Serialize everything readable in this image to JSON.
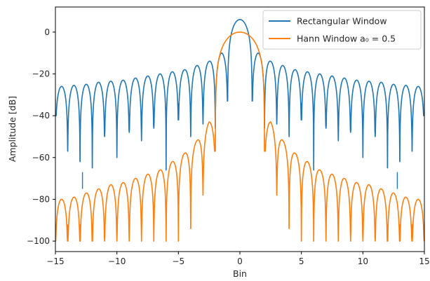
{
  "chart_data": {
    "type": "line",
    "xlabel": "Bin",
    "ylabel": "Amplitude [dB]",
    "xlim": [
      -15,
      15
    ],
    "ylim": [
      -105,
      12
    ],
    "xticks": [
      -15,
      -10,
      -5,
      0,
      5,
      10,
      15
    ],
    "xtick_labels": [
      "−15",
      "−10",
      "−5",
      "0",
      "5",
      "10",
      "15"
    ],
    "yticks": [
      -100,
      -80,
      -60,
      -40,
      -20,
      0
    ],
    "ytick_labels": [
      "−100",
      "−80",
      "−60",
      "−40",
      "−20",
      "0"
    ],
    "grid": false,
    "legend_position": "top-right",
    "series": [
      {
        "name": "Rectangular Window",
        "color": "#1f77b4",
        "main_lobe_peak_db": 6.0,
        "sidelobe_peaks_db": [
          {
            "x": -14.5,
            "y": -26
          },
          {
            "x": -13.5,
            "y": -25.5
          },
          {
            "x": -12.5,
            "y": -25
          },
          {
            "x": -11.5,
            "y": -24
          },
          {
            "x": -10.5,
            "y": -23.5
          },
          {
            "x": -9.5,
            "y": -23
          },
          {
            "x": -8.5,
            "y": -22
          },
          {
            "x": -7.5,
            "y": -21
          },
          {
            "x": -6.5,
            "y": -20
          },
          {
            "x": -5.5,
            "y": -19
          },
          {
            "x": -4.5,
            "y": -18
          },
          {
            "x": -3.5,
            "y": -16
          },
          {
            "x": -2.5,
            "y": -14
          },
          {
            "x": -1.5,
            "y": -10
          },
          {
            "x": 1.5,
            "y": -10
          },
          {
            "x": 2.5,
            "y": -14
          },
          {
            "x": 3.5,
            "y": -16
          },
          {
            "x": 4.5,
            "y": -18
          },
          {
            "x": 5.5,
            "y": -19
          },
          {
            "x": 6.5,
            "y": -20
          },
          {
            "x": 7.5,
            "y": -21
          },
          {
            "x": 8.5,
            "y": -22
          },
          {
            "x": 9.5,
            "y": -23
          },
          {
            "x": 10.5,
            "y": -23.5
          },
          {
            "x": 11.5,
            "y": -24
          },
          {
            "x": 12.5,
            "y": -25
          },
          {
            "x": 13.5,
            "y": -25.5
          },
          {
            "x": 14.5,
            "y": -26
          }
        ],
        "nulls_db": [
          {
            "x": -15,
            "y": -40
          },
          {
            "x": -14,
            "y": -57
          },
          {
            "x": -13,
            "y": -62
          },
          {
            "x": -12.8,
            "y": -75
          },
          {
            "x": -12,
            "y": -65
          },
          {
            "x": -11,
            "y": -50
          },
          {
            "x": -10,
            "y": -60
          },
          {
            "x": -9,
            "y": -48
          },
          {
            "x": -8,
            "y": -52
          },
          {
            "x": -7,
            "y": -46
          },
          {
            "x": -6,
            "y": -66
          },
          {
            "x": -5,
            "y": -42
          },
          {
            "x": -4,
            "y": -50
          },
          {
            "x": -3,
            "y": -44
          },
          {
            "x": -2,
            "y": -46
          },
          {
            "x": -1,
            "y": -33
          },
          {
            "x": 1,
            "y": -33
          },
          {
            "x": 2,
            "y": -46
          },
          {
            "x": 3,
            "y": -44
          },
          {
            "x": 4,
            "y": -50
          },
          {
            "x": 5,
            "y": -42
          },
          {
            "x": 6,
            "y": -66
          },
          {
            "x": 7,
            "y": -46
          },
          {
            "x": 8,
            "y": -52
          },
          {
            "x": 9,
            "y": -48
          },
          {
            "x": 10,
            "y": -60
          },
          {
            "x": 11,
            "y": -50
          },
          {
            "x": 12,
            "y": -65
          },
          {
            "x": 12.8,
            "y": -75
          },
          {
            "x": 13,
            "y": -62
          },
          {
            "x": 14,
            "y": -57
          },
          {
            "x": 15,
            "y": -40
          }
        ]
      },
      {
        "name": "Hann Window a₀ = 0.5",
        "color": "#ff7f0e",
        "main_lobe_peak_db": 0.0,
        "sidelobe_peaks_db": [
          {
            "x": -14.5,
            "y": -80
          },
          {
            "x": -13.5,
            "y": -79
          },
          {
            "x": -12.5,
            "y": -77
          },
          {
            "x": -11.5,
            "y": -75
          },
          {
            "x": -10.5,
            "y": -73
          },
          {
            "x": -9.5,
            "y": -72
          },
          {
            "x": -8.5,
            "y": -70
          },
          {
            "x": -7.5,
            "y": -68
          },
          {
            "x": -6.5,
            "y": -66
          },
          {
            "x": -5.5,
            "y": -62
          },
          {
            "x": -4.5,
            "y": -58
          },
          {
            "x": -3.5,
            "y": -52
          },
          {
            "x": -2.5,
            "y": -43
          },
          {
            "x": 2.5,
            "y": -43
          },
          {
            "x": 3.5,
            "y": -52
          },
          {
            "x": 4.5,
            "y": -58
          },
          {
            "x": 5.5,
            "y": -62
          },
          {
            "x": 6.5,
            "y": -66
          },
          {
            "x": 7.5,
            "y": -68
          },
          {
            "x": 8.5,
            "y": -70
          },
          {
            "x": 9.5,
            "y": -72
          },
          {
            "x": 10.5,
            "y": -73
          },
          {
            "x": 11.5,
            "y": -75
          },
          {
            "x": 12.5,
            "y": -77
          },
          {
            "x": 13.5,
            "y": -79
          },
          {
            "x": 14.5,
            "y": -80
          }
        ],
        "nulls_db": [
          {
            "x": -15,
            "y": -100
          },
          {
            "x": -14,
            "y": -100
          },
          {
            "x": -13,
            "y": -100
          },
          {
            "x": -12,
            "y": -100
          },
          {
            "x": -11,
            "y": -100
          },
          {
            "x": -10,
            "y": -100
          },
          {
            "x": -9,
            "y": -100
          },
          {
            "x": -8,
            "y": -100
          },
          {
            "x": -7,
            "y": -100
          },
          {
            "x": -6,
            "y": -100
          },
          {
            "x": -5,
            "y": -100
          },
          {
            "x": -4,
            "y": -94
          },
          {
            "x": -3,
            "y": -78
          },
          {
            "x": -2,
            "y": -57
          },
          {
            "x": 2,
            "y": -57
          },
          {
            "x": 3,
            "y": -78
          },
          {
            "x": 4,
            "y": -94
          },
          {
            "x": 5,
            "y": -100
          },
          {
            "x": 6,
            "y": -100
          },
          {
            "x": 7,
            "y": -100
          },
          {
            "x": 8,
            "y": -100
          },
          {
            "x": 9,
            "y": -100
          },
          {
            "x": 10,
            "y": -100
          },
          {
            "x": 11,
            "y": -100
          },
          {
            "x": 12,
            "y": -100
          },
          {
            "x": 13,
            "y": -100
          },
          {
            "x": 14,
            "y": -100
          },
          {
            "x": 15,
            "y": -100
          }
        ]
      }
    ]
  }
}
